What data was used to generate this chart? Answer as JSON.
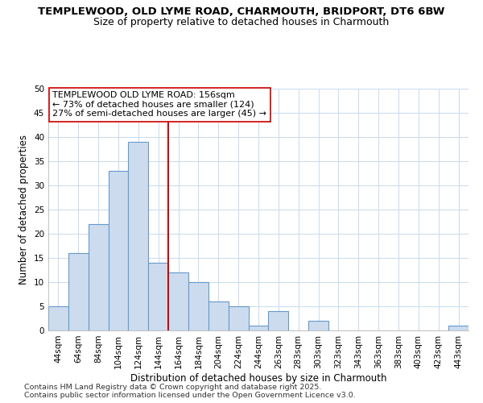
{
  "title_line1": "TEMPLEWOOD, OLD LYME ROAD, CHARMOUTH, BRIDPORT, DT6 6BW",
  "title_line2": "Size of property relative to detached houses in Charmouth",
  "xlabel": "Distribution of detached houses by size in Charmouth",
  "ylabel": "Number of detached properties",
  "categories": [
    "44sqm",
    "64sqm",
    "84sqm",
    "104sqm",
    "124sqm",
    "144sqm",
    "164sqm",
    "184sqm",
    "204sqm",
    "224sqm",
    "244sqm",
    "263sqm",
    "283sqm",
    "303sqm",
    "323sqm",
    "343sqm",
    "363sqm",
    "383sqm",
    "403sqm",
    "423sqm",
    "443sqm"
  ],
  "values": [
    5,
    16,
    22,
    33,
    39,
    14,
    12,
    10,
    6,
    5,
    1,
    4,
    0,
    2,
    0,
    0,
    0,
    0,
    0,
    0,
    1
  ],
  "bar_color": "#ccdcee",
  "bar_edge_color": "#6699cc",
  "vline_x": 5.5,
  "vline_color": "#cc0000",
  "annotation_text": "TEMPLEWOOD OLD LYME ROAD: 156sqm\n← 73% of detached houses are smaller (124)\n27% of semi-detached houses are larger (45) →",
  "annotation_box_color": "#ffffff",
  "annotation_box_edge": "#cc0000",
  "ylim": [
    0,
    50
  ],
  "yticks": [
    0,
    5,
    10,
    15,
    20,
    25,
    30,
    35,
    40,
    45,
    50
  ],
  "background_color": "#ffffff",
  "plot_bg_color": "#ffffff",
  "grid_color": "#ccddee",
  "footer_text": "Contains HM Land Registry data © Crown copyright and database right 2025.\nContains public sector information licensed under the Open Government Licence v3.0.",
  "title_fontsize": 9.5,
  "subtitle_fontsize": 9,
  "axis_label_fontsize": 8.5,
  "tick_fontsize": 7.5,
  "annotation_fontsize": 8,
  "footer_fontsize": 6.8
}
